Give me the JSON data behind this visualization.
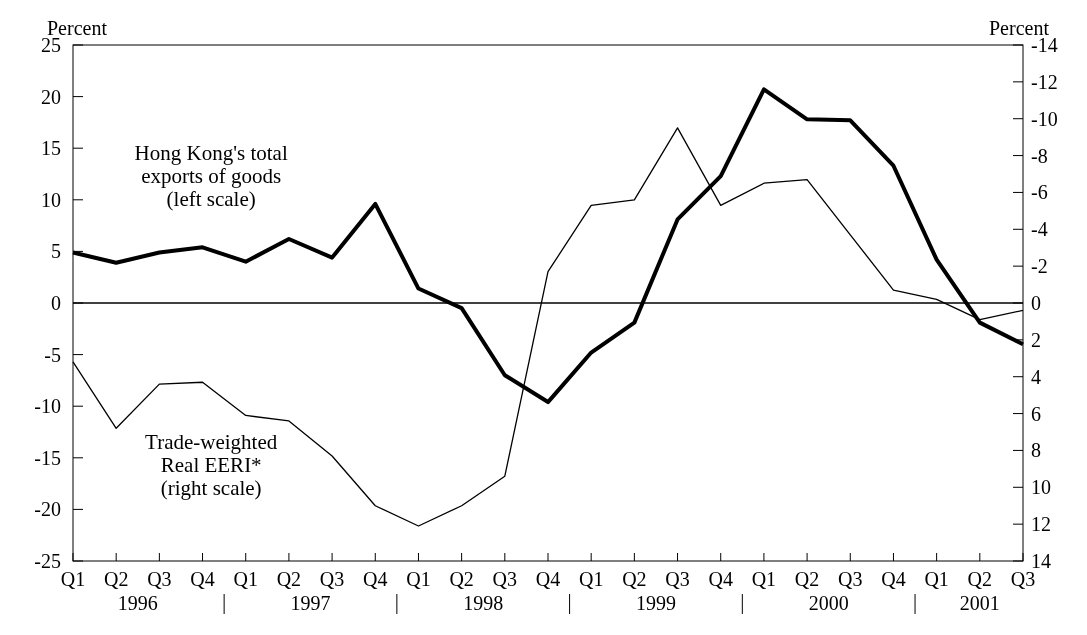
{
  "chart_data": {
    "type": "line",
    "ylabel": "Percent",
    "y2label": "Percent",
    "categories": [
      "Q1",
      "Q2",
      "Q3",
      "Q4",
      "Q1",
      "Q2",
      "Q3",
      "Q4",
      "Q1",
      "Q2",
      "Q3",
      "Q4",
      "Q1",
      "Q2",
      "Q3",
      "Q4",
      "Q1",
      "Q2",
      "Q3",
      "Q4",
      "Q1",
      "Q2",
      "Q3"
    ],
    "series": [
      {
        "name": "Hong Kong's total\nexports of goods\n(left scale)",
        "color": "#000000",
        "values": [
          4.9,
          3.9,
          4.9,
          5.4,
          4.0,
          6.2,
          4.4,
          9.6,
          1.4,
          -0.5,
          -7.0,
          -9.6,
          -4.8,
          -1.9,
          8.1,
          12.3,
          20.7,
          17.8,
          17.7,
          13.3,
          4.2,
          -1.9,
          -4.0
        ]
      },
      {
        "name": "Trade-weighted\nReal EERI*\n(right scale)",
        "color": "#000000",
        "axis": "y2",
        "values": [
          3.2,
          6.8,
          4.4,
          4.3,
          6.1,
          6.4,
          8.3,
          11.0,
          12.1,
          11.0,
          9.4,
          -1.7,
          -5.3,
          -5.6,
          -9.5,
          -5.3,
          -6.5,
          -6.7,
          -3.7,
          -0.7,
          -0.2,
          0.9,
          0.4
        ]
      }
    ],
    "ylim": [
      -25,
      25
    ],
    "yticks": [
      -25,
      -20,
      -15,
      -10,
      -5,
      0,
      5,
      10,
      15,
      20,
      25
    ],
    "y2lim": [
      14,
      -14
    ],
    "y2ticks": [
      14,
      12,
      10,
      8,
      6,
      4,
      2,
      0,
      -2,
      -4,
      -6,
      -8,
      -10,
      -12,
      -14
    ],
    "ref_lines": [
      {
        "axis": "y",
        "value": 0
      }
    ],
    "annotations": [
      "1996",
      "1997",
      "1998",
      "1999",
      "2000",
      "2001"
    ],
    "grid": false,
    "marker": "none",
    "line_style": "solid"
  }
}
